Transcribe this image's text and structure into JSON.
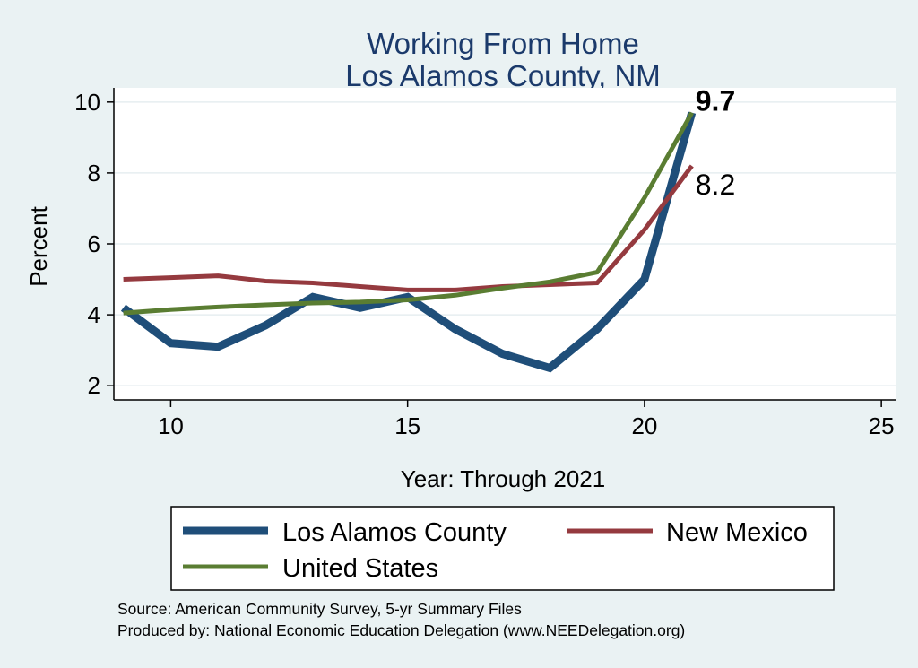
{
  "chart_data": {
    "type": "line",
    "title": [
      "Working From Home",
      "Los Alamos County, NM"
    ],
    "xlabel": "Year: Through 2021",
    "ylabel": "Percent",
    "xlim": [
      8.8,
      25.3
    ],
    "ylim": [
      1.6,
      10.4
    ],
    "xticks": [
      10,
      15,
      20,
      25
    ],
    "yticks": [
      2,
      4,
      6,
      8,
      10
    ],
    "grid": true,
    "legend_position": "bottom",
    "series": [
      {
        "name": "Los Alamos County",
        "color": "#1f4e79",
        "x": [
          9,
          10,
          11,
          12,
          13,
          14,
          15,
          16,
          17,
          18,
          19,
          20,
          21
        ],
        "values": [
          4.2,
          3.2,
          3.1,
          3.7,
          4.5,
          4.2,
          4.5,
          3.6,
          2.9,
          2.5,
          3.6,
          5.0,
          9.7
        ]
      },
      {
        "name": "New Mexico",
        "color": "#953a3f",
        "x": [
          9,
          10,
          11,
          12,
          13,
          14,
          15,
          16,
          17,
          18,
          19,
          20,
          21
        ],
        "values": [
          5.0,
          5.05,
          5.1,
          4.95,
          4.9,
          4.8,
          4.7,
          4.7,
          4.8,
          4.85,
          4.9,
          6.4,
          8.2
        ]
      },
      {
        "name": "United States",
        "color": "#5a7d32",
        "x": [
          9,
          10,
          11,
          12,
          13,
          14,
          15,
          16,
          17,
          18,
          19,
          20,
          21
        ],
        "values": [
          4.05,
          4.15,
          4.22,
          4.28,
          4.33,
          4.36,
          4.42,
          4.55,
          4.75,
          4.93,
          5.2,
          7.3,
          9.7
        ]
      }
    ],
    "annotations": [
      {
        "text": "9.7",
        "x": 21,
        "y": 9.7
      },
      {
        "text": "8.2",
        "x": 21,
        "y": 8.2
      }
    ]
  },
  "legend": {
    "items": [
      "Los Alamos County",
      "New Mexico",
      "United States"
    ]
  },
  "notes": {
    "source": "Source: American Community Survey, 5-yr Summary Files",
    "produced": "Produced by: National Economic Education Delegation (www.NEEDelegation.org)"
  }
}
